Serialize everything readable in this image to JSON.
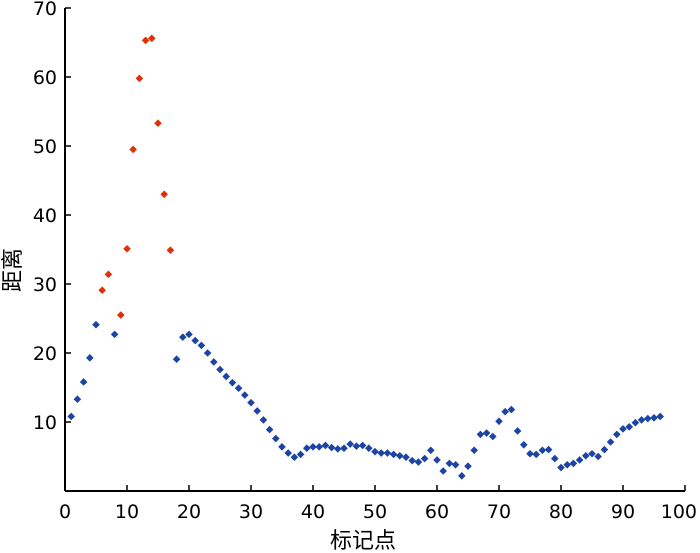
{
  "chart_data": {
    "type": "scatter",
    "title": "",
    "xlabel": "标记点",
    "ylabel": "距离",
    "xlim": [
      0,
      100
    ],
    "ylim": [
      0,
      70
    ],
    "xticks": [
      0,
      10,
      20,
      30,
      40,
      50,
      60,
      70,
      80,
      90,
      100
    ],
    "yticks": [
      10,
      20,
      30,
      40,
      50,
      60,
      70
    ],
    "xtick_labels": [
      "0",
      "10",
      "20",
      "30",
      "40",
      "50",
      "60",
      "70",
      "80",
      "90",
      "100"
    ],
    "ytick_labels": [
      "10",
      "20",
      "30",
      "40",
      "50",
      "60",
      "70"
    ],
    "grid": false,
    "marker": "diamond",
    "colors": {
      "blue": "#1b44a4",
      "red": "#e0300a"
    },
    "series": [
      {
        "color": "blue",
        "points": [
          [
            1,
            10.8
          ],
          [
            2,
            13.3
          ],
          [
            3,
            15.8
          ],
          [
            4,
            19.3
          ],
          [
            5,
            24.1
          ],
          [
            8,
            22.7
          ],
          [
            18,
            19.1
          ],
          [
            19,
            22.3
          ],
          [
            20,
            22.7
          ],
          [
            21,
            21.8
          ],
          [
            22,
            21.1
          ],
          [
            23,
            20.0
          ],
          [
            24,
            18.7
          ],
          [
            25,
            17.6
          ],
          [
            26,
            16.6
          ],
          [
            27,
            15.7
          ],
          [
            28,
            14.9
          ],
          [
            29,
            13.9
          ],
          [
            30,
            12.8
          ],
          [
            31,
            11.6
          ],
          [
            32,
            10.3
          ],
          [
            33,
            8.9
          ],
          [
            34,
            7.6
          ],
          [
            35,
            6.4
          ],
          [
            36,
            5.5
          ],
          [
            37,
            4.9
          ],
          [
            38,
            5.3
          ],
          [
            39,
            6.2
          ],
          [
            40,
            6.4
          ],
          [
            41,
            6.4
          ],
          [
            42,
            6.6
          ],
          [
            43,
            6.3
          ],
          [
            44,
            6.1
          ],
          [
            45,
            6.2
          ],
          [
            46,
            6.8
          ],
          [
            47,
            6.5
          ],
          [
            48,
            6.6
          ],
          [
            49,
            6.2
          ],
          [
            50,
            5.7
          ],
          [
            51,
            5.5
          ],
          [
            52,
            5.5
          ],
          [
            53,
            5.3
          ],
          [
            54,
            5.1
          ],
          [
            55,
            4.9
          ],
          [
            56,
            4.4
          ],
          [
            57,
            4.2
          ],
          [
            58,
            4.7
          ],
          [
            59,
            5.9
          ],
          [
            60,
            4.5
          ],
          [
            61,
            2.9
          ],
          [
            62,
            4.0
          ],
          [
            63,
            3.8
          ],
          [
            64,
            2.2
          ],
          [
            65,
            3.6
          ],
          [
            66,
            5.9
          ],
          [
            67,
            8.2
          ],
          [
            68,
            8.4
          ],
          [
            69,
            7.9
          ],
          [
            70,
            10.1
          ],
          [
            71,
            11.5
          ],
          [
            72,
            11.8
          ],
          [
            73,
            8.7
          ],
          [
            74,
            6.7
          ],
          [
            75,
            5.4
          ],
          [
            76,
            5.3
          ],
          [
            77,
            5.9
          ],
          [
            78,
            6.0
          ],
          [
            79,
            4.7
          ],
          [
            80,
            3.4
          ],
          [
            81,
            3.8
          ],
          [
            82,
            4.0
          ],
          [
            83,
            4.5
          ],
          [
            84,
            5.1
          ],
          [
            85,
            5.4
          ],
          [
            86,
            5.0
          ],
          [
            87,
            6.0
          ],
          [
            88,
            7.1
          ],
          [
            89,
            8.2
          ],
          [
            90,
            9.0
          ],
          [
            91,
            9.3
          ],
          [
            92,
            9.9
          ],
          [
            93,
            10.3
          ],
          [
            94,
            10.5
          ],
          [
            95,
            10.6
          ],
          [
            96,
            10.8
          ]
        ]
      },
      {
        "color": "red",
        "points": [
          [
            6,
            29.1
          ],
          [
            7,
            31.4
          ],
          [
            9,
            25.5
          ],
          [
            10,
            35.1
          ],
          [
            11,
            49.5
          ],
          [
            12,
            59.8
          ],
          [
            13,
            65.3
          ],
          [
            14,
            65.6
          ],
          [
            15,
            53.3
          ],
          [
            16,
            43.0
          ],
          [
            17,
            34.9
          ]
        ]
      }
    ]
  }
}
